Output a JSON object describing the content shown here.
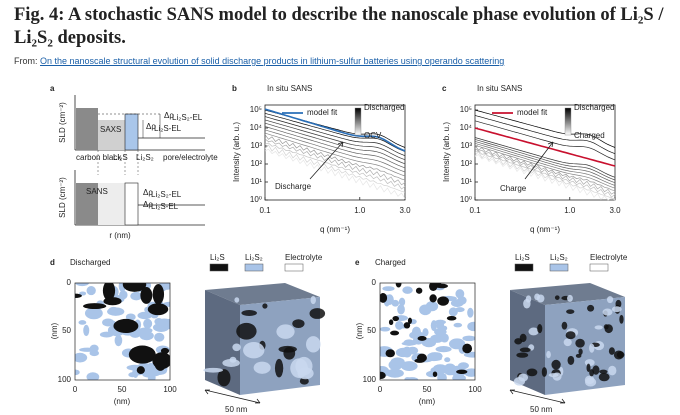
{
  "header": {
    "title": "Fig. 4: A stochastic SANS model to describe the nanoscale phase evolution of Li₂S / Li₂S₂ deposits.",
    "from": "From:",
    "link": "On the nanoscale structural evolution of solid discharge products in lithium-sulfur batteries using operando scattering"
  },
  "panels": {
    "a": {
      "label": "a",
      "sld_top": "SLD (cm⁻²)",
      "sld_bottom": "SLD (cm⁻²)",
      "saxs": "SAXS",
      "sans": "SANS",
      "drho_top_1": "Δρ",
      "drho_top_1_sub": "Li₂S₂-EL",
      "drho_top_2": "Δρ",
      "drho_top_2_sub": "Li₂S-EL",
      "drho_bot_1": "Δρ",
      "drho_bot_1_sub": "Li₂S₂-EL",
      "drho_bot_2": "Δρ",
      "drho_bot_2_sub": "Li₂S-EL",
      "regions": [
        "carbon black",
        "Li₂S",
        "Li₂S₂",
        "pore/electrolyte"
      ],
      "xlabel": "r (nm)"
    },
    "b": {
      "label": "b",
      "title": "In situ SANS",
      "ylabel": "Intensity (arb. u.)",
      "xlabel": "q (nm⁻¹)",
      "yticks": [
        "10⁵",
        "10⁴",
        "10³",
        "10²",
        "10¹",
        "10⁰"
      ],
      "xticks": [
        "0.1",
        "1.0",
        "3.0"
      ],
      "legend": "model fit",
      "bar_top": "Discharged",
      "bar_bottom": "OCV",
      "annotation": "Discharge"
    },
    "c": {
      "label": "c",
      "title": "In situ SANS",
      "ylabel": "Intensity (arb. u.)",
      "xlabel": "q (nm⁻¹)",
      "yticks": [
        "10⁵",
        "10⁴",
        "10³",
        "10²",
        "10¹",
        "10⁰"
      ],
      "xticks": [
        "0.1",
        "1.0",
        "3.0"
      ],
      "legend": "model fit",
      "bar_top": "Discharged",
      "bar_bottom": "Charged",
      "annotation": "Charge"
    },
    "d": {
      "label": "d",
      "state": "Discharged",
      "yticks": [
        "0",
        "50",
        "100"
      ],
      "xticks": [
        "0",
        "50",
        "100"
      ],
      "xlabel": "(nm)",
      "ylabel": "(nm)",
      "legend": [
        "Li₂S",
        "Li₂S₂",
        "Electrolyte"
      ],
      "scale": "50 nm"
    },
    "e": {
      "label": "e",
      "state": "Charged",
      "yticks": [
        "0",
        "50",
        "100"
      ],
      "xticks": [
        "0",
        "50",
        "100"
      ],
      "xlabel": "(nm)",
      "ylabel": "(nm)",
      "legend": [
        "Li₂S",
        "Li₂S₂",
        "Electrolyte"
      ],
      "scale": "50 nm"
    }
  }
}
